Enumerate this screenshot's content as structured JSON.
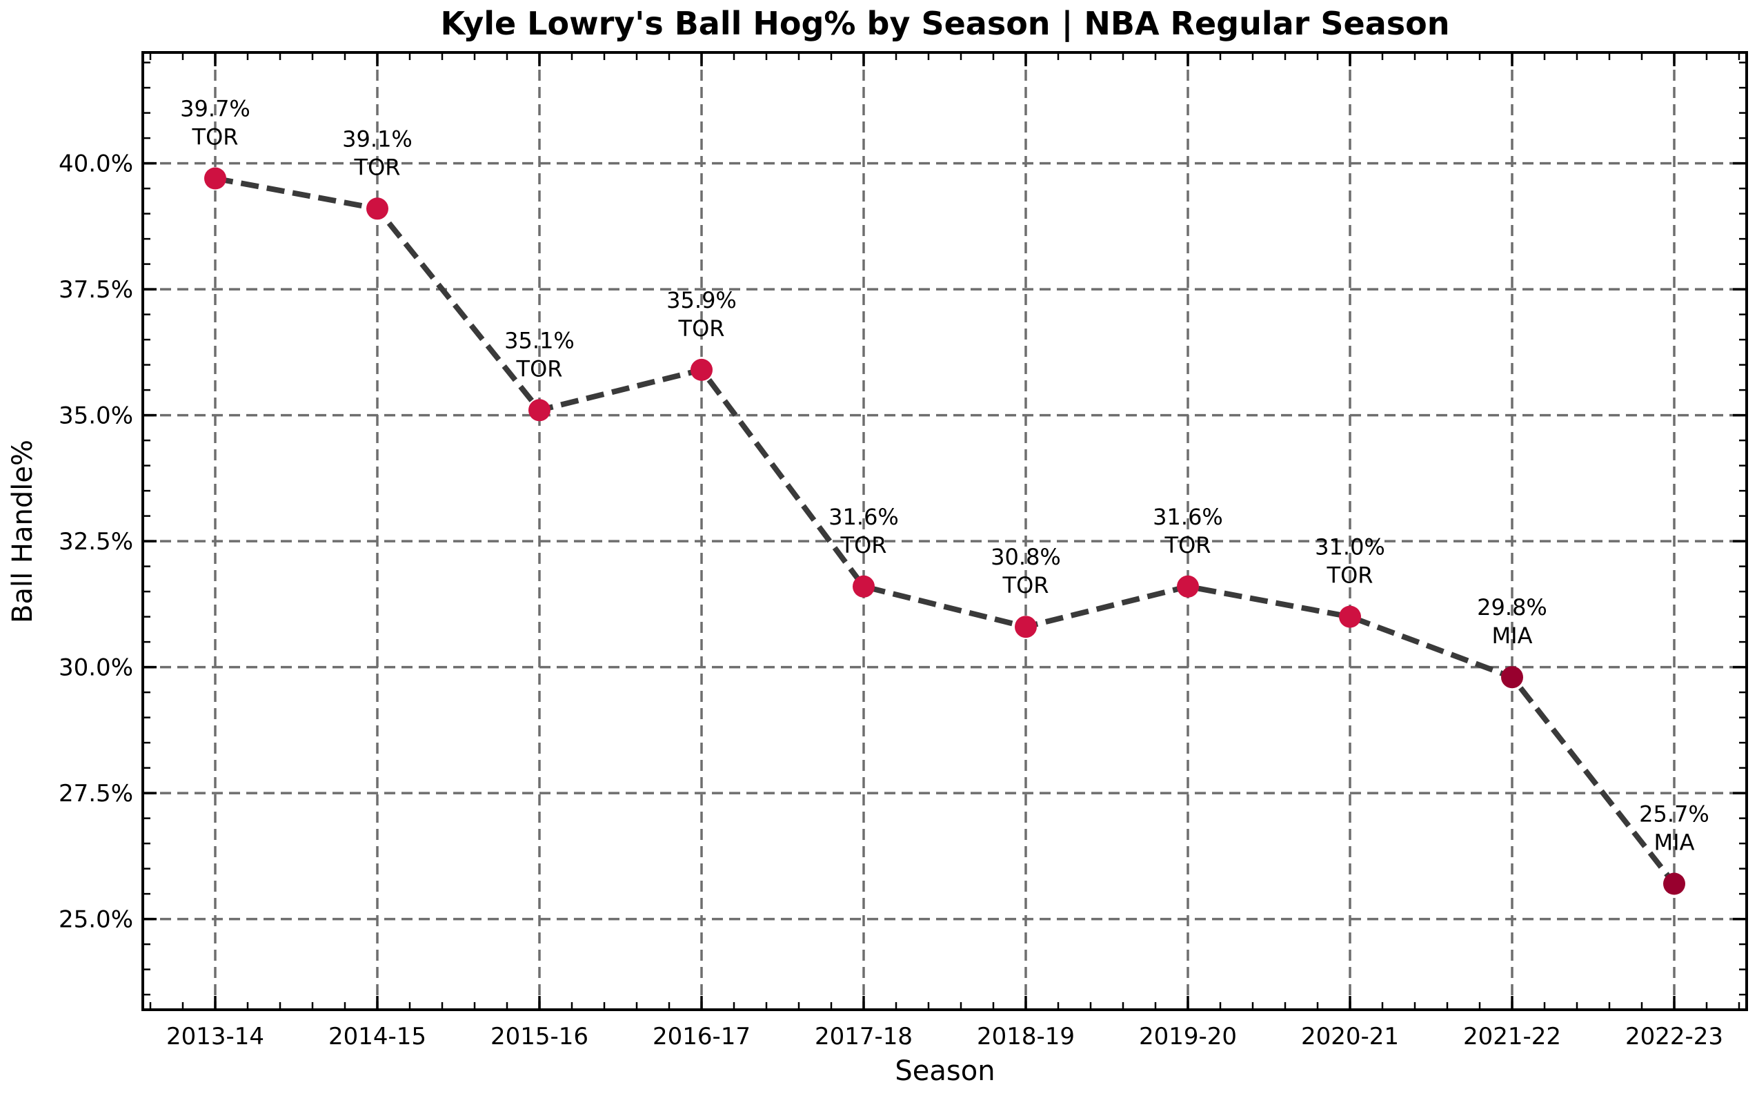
{
  "chart_data": {
    "type": "line",
    "title": "Kyle Lowry's Ball Hog% by Season | NBA Regular Season",
    "xlabel": "Season",
    "ylabel": "Ball Handle%",
    "categories": [
      "2013-14",
      "2014-15",
      "2015-16",
      "2016-17",
      "2017-18",
      "2018-19",
      "2019-20",
      "2020-21",
      "2021-22",
      "2022-23"
    ],
    "series": [
      {
        "name": "Ball Handle%",
        "values": [
          39.7,
          39.1,
          35.1,
          35.9,
          31.6,
          30.8,
          31.6,
          31.0,
          29.8,
          25.7
        ],
        "teams": [
          "TOR",
          "TOR",
          "TOR",
          "TOR",
          "TOR",
          "TOR",
          "TOR",
          "TOR",
          "MIA",
          "MIA"
        ],
        "value_labels": [
          "39.7%",
          "39.1%",
          "35.1%",
          "35.9%",
          "31.6%",
          "30.8%",
          "31.6%",
          "31.0%",
          "29.8%",
          "25.7%"
        ]
      }
    ],
    "ylim": [
      23.2,
      42.2
    ],
    "yticks": [
      25.0,
      27.5,
      30.0,
      32.5,
      35.0,
      37.5,
      40.0
    ],
    "ytick_labels": [
      "25.0%",
      "27.5%",
      "30.0%",
      "32.5%",
      "35.0%",
      "37.5%",
      "40.0%"
    ],
    "grid": true,
    "colors": {
      "line": "#3a3a3a",
      "team_colors": {
        "TOR": "#ce1141",
        "MIA": "#98002e"
      },
      "grid": "#6e6e6e"
    }
  }
}
